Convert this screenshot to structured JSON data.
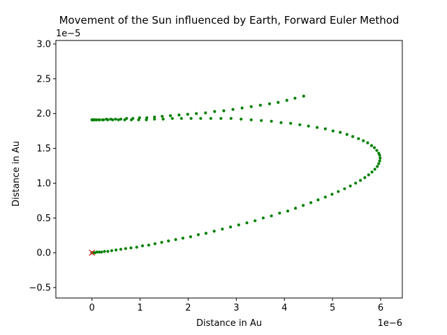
{
  "chart_data": {
    "type": "scatter",
    "title": "Movement of the Sun influenced by Earth, Forward Euler Method",
    "xlabel": "Distance in Au",
    "ylabel": "Distance in Au",
    "x_offset_text": "1e−6",
    "y_offset_text": "1e−5",
    "x_scale": 1e-06,
    "y_scale": 1e-05,
    "xlim": [
      -0.75,
      6.45
    ],
    "ylim": [
      -0.65,
      3.05
    ],
    "x_ticks": [
      0,
      1,
      2,
      3,
      4,
      5,
      6
    ],
    "x_tick_labels": [
      "0",
      "1",
      "2",
      "3",
      "4",
      "5",
      "6"
    ],
    "y_ticks": [
      -0.5,
      0.0,
      0.5,
      1.0,
      1.5,
      2.0,
      2.5,
      3.0
    ],
    "y_tick_labels": [
      "−0.5",
      "0.0",
      "0.5",
      "1.0",
      "1.5",
      "2.0",
      "2.5",
      "3.0"
    ],
    "grid": false,
    "legend": "none",
    "colors": {
      "series": "#008000",
      "marker": "#d62728"
    },
    "series": [
      {
        "marker": "dot",
        "x": [
          0.0,
          0.0,
          0.01,
          0.02,
          0.03,
          0.06,
          0.1,
          0.15,
          0.2,
          0.26,
          0.33,
          0.41,
          0.5,
          0.6,
          0.7,
          0.81,
          0.93,
          1.05,
          1.18,
          1.31,
          1.45,
          1.59,
          1.74,
          1.89,
          2.05,
          2.21,
          2.37,
          2.54,
          2.71,
          2.88,
          3.05,
          3.22,
          3.39,
          3.56,
          3.73,
          3.9,
          4.07,
          4.23,
          4.39,
          4.55,
          4.7,
          4.85,
          4.99,
          5.12,
          5.25,
          5.37,
          5.48,
          5.58,
          5.67,
          5.75,
          5.82,
          5.88,
          5.93,
          5.96,
          5.98,
          5.99,
          5.98,
          5.96,
          5.92,
          5.87,
          5.81,
          5.73,
          5.64,
          5.54,
          5.42,
          5.3,
          5.16,
          5.01,
          4.85,
          4.68,
          4.5,
          4.32,
          4.13,
          3.93,
          3.73,
          3.52,
          3.31,
          3.1,
          2.89,
          2.68,
          2.47,
          2.26,
          2.06,
          1.86,
          1.67,
          1.48,
          1.3,
          1.13,
          0.97,
          0.82,
          0.68,
          0.55,
          0.43,
          0.33,
          0.24,
          0.16,
          0.1,
          0.05,
          0.02,
          0.0,
          0.0,
          0.01,
          0.03,
          0.06,
          0.1,
          0.15,
          0.22,
          0.3,
          0.39,
          0.49,
          0.6,
          0.72,
          0.85,
          0.99,
          1.14,
          1.3,
          1.46,
          1.63,
          1.81,
          1.99,
          2.17,
          2.36,
          2.55,
          2.74,
          2.93,
          3.12,
          3.31,
          3.5,
          3.69,
          3.87,
          4.05,
          4.22,
          4.4
        ],
        "y": [
          0.0,
          0.0,
          0.0,
          0.0,
          0.0,
          0.0,
          0.01,
          0.01,
          0.01,
          0.02,
          0.02,
          0.03,
          0.04,
          0.05,
          0.06,
          0.07,
          0.08,
          0.1,
          0.11,
          0.13,
          0.15,
          0.17,
          0.19,
          0.21,
          0.23,
          0.26,
          0.28,
          0.31,
          0.34,
          0.37,
          0.4,
          0.43,
          0.46,
          0.5,
          0.53,
          0.57,
          0.6,
          0.64,
          0.68,
          0.72,
          0.76,
          0.8,
          0.84,
          0.88,
          0.92,
          0.96,
          1.0,
          1.04,
          1.08,
          1.12,
          1.16,
          1.2,
          1.24,
          1.28,
          1.32,
          1.36,
          1.4,
          1.43,
          1.47,
          1.51,
          1.54,
          1.58,
          1.61,
          1.64,
          1.67,
          1.7,
          1.73,
          1.75,
          1.78,
          1.8,
          1.82,
          1.84,
          1.86,
          1.87,
          1.89,
          1.9,
          1.91,
          1.92,
          1.93,
          1.93,
          1.93,
          1.93,
          1.93,
          1.93,
          1.93,
          1.92,
          1.92,
          1.91,
          1.91,
          1.91,
          1.91,
          1.91,
          1.91,
          1.91,
          1.91,
          1.91,
          1.91,
          1.91,
          1.91,
          1.91,
          1.91,
          1.91,
          1.91,
          1.91,
          1.91,
          1.91,
          1.91,
          1.92,
          1.92,
          1.92,
          1.92,
          1.93,
          1.93,
          1.94,
          1.94,
          1.95,
          1.96,
          1.97,
          1.98,
          1.99,
          2.0,
          2.01,
          2.03,
          2.04,
          2.06,
          2.08,
          2.1,
          2.12,
          2.14,
          2.16,
          2.19,
          2.22,
          2.25
        ],
        "x_ordered_note": ""
      },
      {
        "marker": "x",
        "x": [
          0.0
        ],
        "y": [
          0.0
        ]
      }
    ]
  }
}
